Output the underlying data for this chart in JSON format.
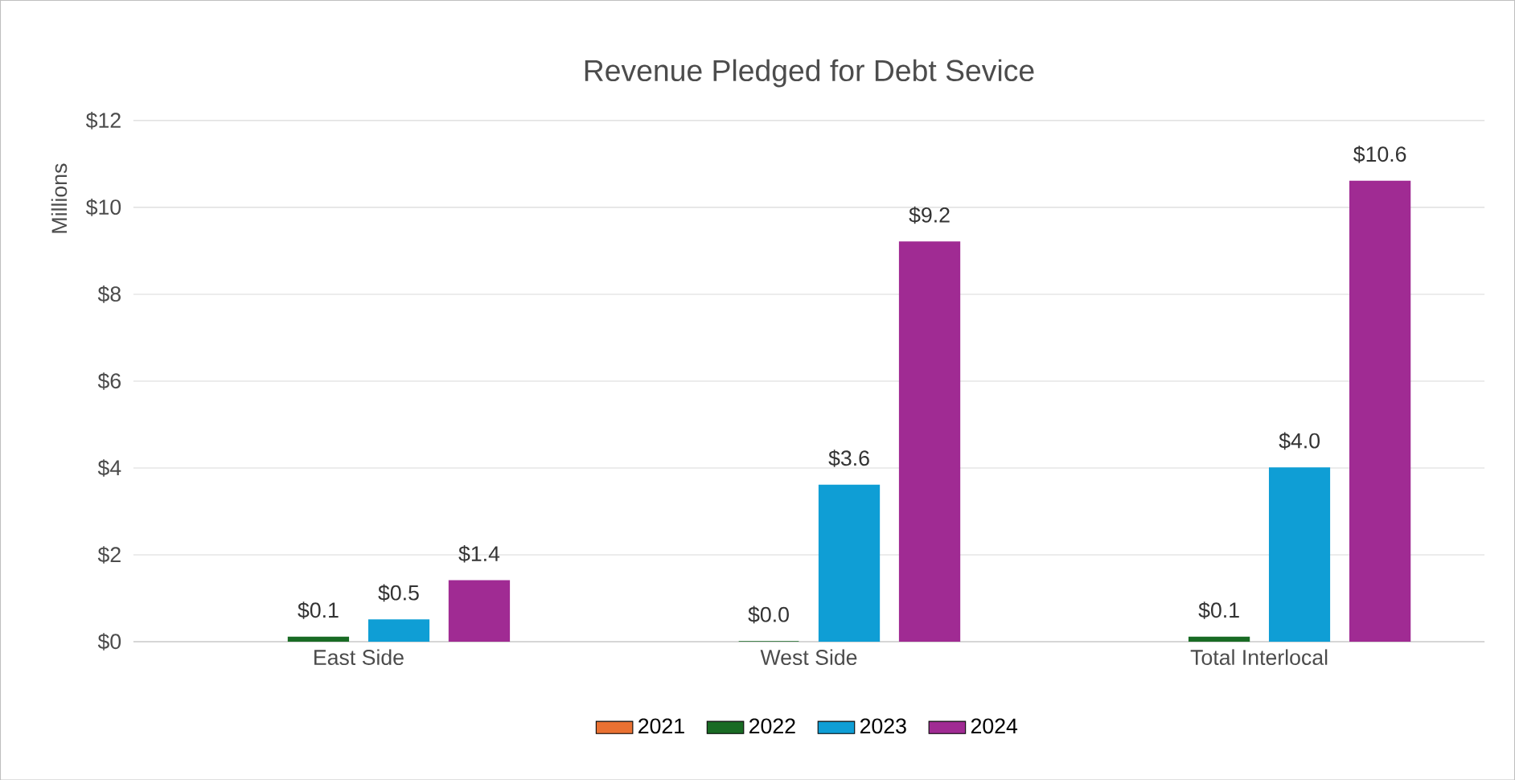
{
  "chart_data": {
    "type": "bar",
    "title": "Revenue  Pledged for Debt Sevice",
    "ylabel": "Millions",
    "categories": [
      "East Side",
      "West Side",
      "Total Interlocal"
    ],
    "series": [
      {
        "name": "2021",
        "color": "#e97132",
        "values": [
          null,
          null,
          null
        ]
      },
      {
        "name": "2022",
        "color": "#196b24",
        "values": [
          0.1,
          0.0,
          0.1
        ],
        "value_labels": [
          "$0.1",
          "$0.0",
          "$0.1"
        ]
      },
      {
        "name": "2023",
        "color": "#0f9ed5",
        "values": [
          0.5,
          3.6,
          4.0
        ],
        "value_labels": [
          "$0.5",
          "$3.6",
          "$4.0"
        ]
      },
      {
        "name": "2024",
        "color": "#a02b93",
        "values": [
          1.4,
          9.2,
          10.6
        ],
        "value_labels": [
          "$1.4",
          "$9.2",
          "$10.6"
        ]
      }
    ],
    "ylim": [
      0,
      12
    ],
    "yticks": [
      {
        "value": 0,
        "label": "$0"
      },
      {
        "value": 2,
        "label": "$2"
      },
      {
        "value": 4,
        "label": "$4"
      },
      {
        "value": 6,
        "label": "$6"
      },
      {
        "value": 8,
        "label": "$8"
      },
      {
        "value": 10,
        "label": "$10"
      },
      {
        "value": 12,
        "label": "$12"
      }
    ],
    "grid": "y",
    "legend": "bottom"
  }
}
